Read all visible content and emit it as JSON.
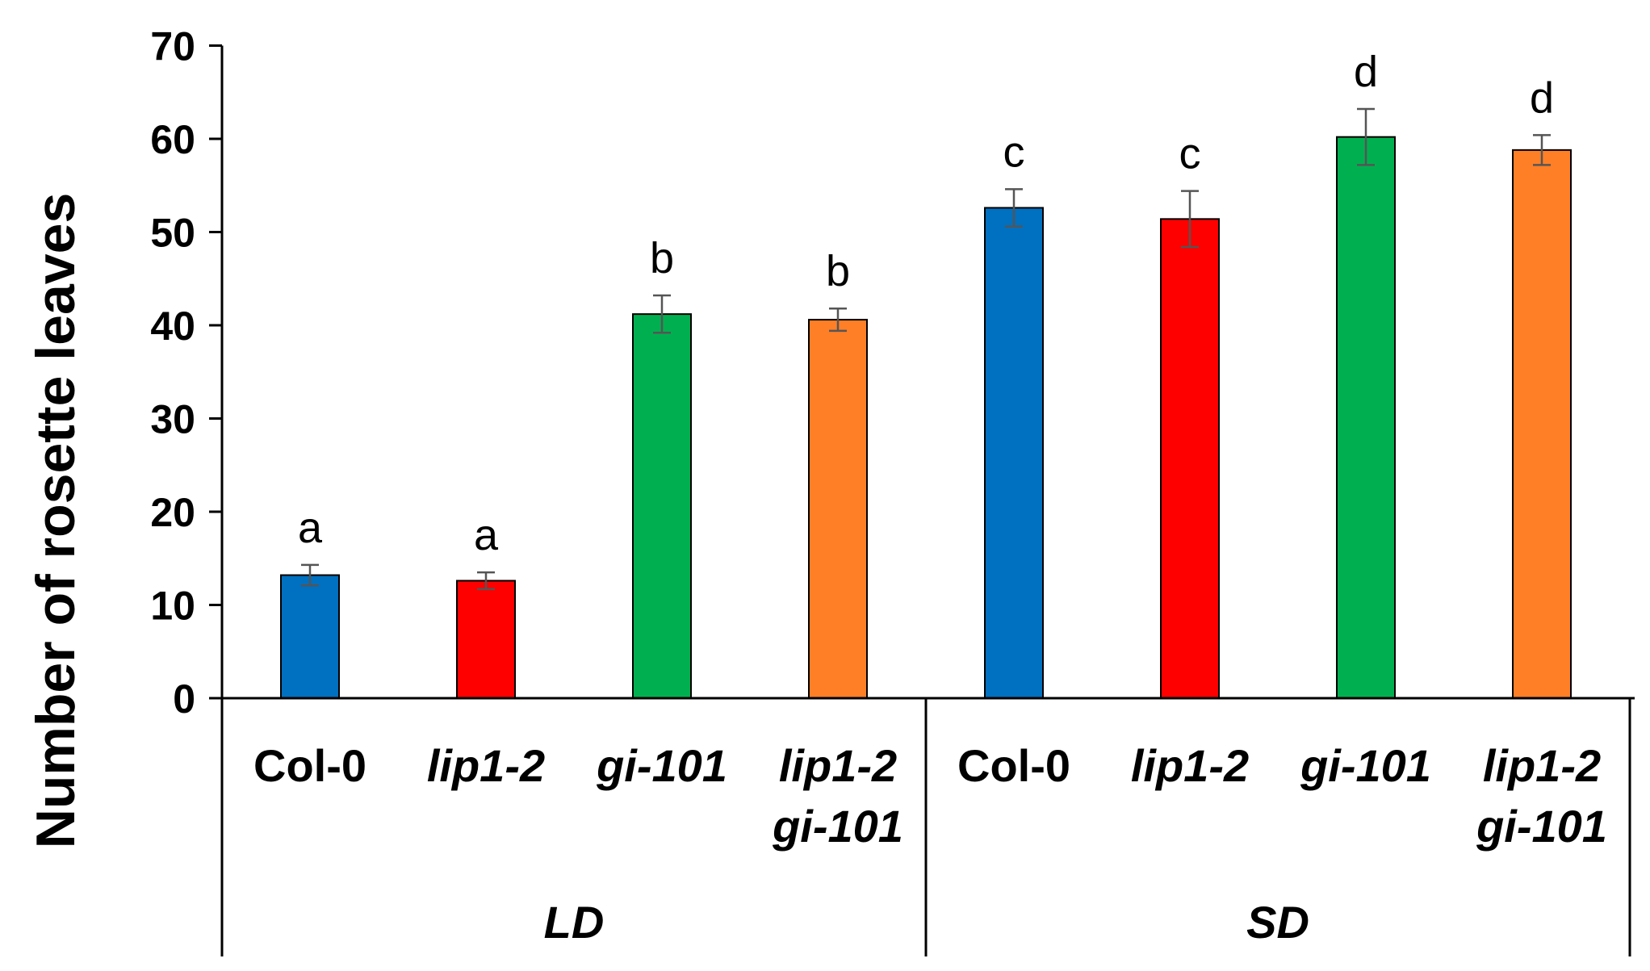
{
  "chart_data": {
    "type": "bar",
    "title": "",
    "xlabel": "",
    "ylabel": "Number of rosette leaves",
    "ylim": [
      0,
      70
    ],
    "yticks": [
      0,
      10,
      20,
      30,
      40,
      50,
      60,
      70
    ],
    "grid": false,
    "legend": "none",
    "groups": [
      {
        "label": "LD",
        "bars": [
          {
            "category": "Col-0",
            "category_lines": [
              "Col-0"
            ],
            "italic": false,
            "value": 13.2,
            "error": 1.1,
            "letter": "a",
            "color": "#0070C0"
          },
          {
            "category": "lip1-2",
            "category_lines": [
              "lip1-2"
            ],
            "italic": true,
            "value": 12.6,
            "error": 0.9,
            "letter": "a",
            "color": "#FF0000"
          },
          {
            "category": "gi-101",
            "category_lines": [
              "gi-101"
            ],
            "italic": true,
            "value": 41.2,
            "error": 2.0,
            "letter": "b",
            "color": "#00B050"
          },
          {
            "category": "lip1-2 gi-101",
            "category_lines": [
              "lip1-2",
              "gi-101"
            ],
            "italic": true,
            "value": 40.6,
            "error": 1.2,
            "letter": "b",
            "color": "#FF7F27"
          }
        ]
      },
      {
        "label": "SD",
        "bars": [
          {
            "category": "Col-0",
            "category_lines": [
              "Col-0"
            ],
            "italic": false,
            "value": 52.6,
            "error": 2.0,
            "letter": "c",
            "color": "#0070C0"
          },
          {
            "category": "lip1-2",
            "category_lines": [
              "lip1-2"
            ],
            "italic": true,
            "value": 51.4,
            "error": 3.0,
            "letter": "c",
            "color": "#FF0000"
          },
          {
            "category": "gi-101",
            "category_lines": [
              "gi-101"
            ],
            "italic": true,
            "value": 60.2,
            "error": 3.0,
            "letter": "d",
            "color": "#00B050"
          },
          {
            "category": "lip1-2 gi-101",
            "category_lines": [
              "lip1-2",
              "gi-101"
            ],
            "italic": true,
            "value": 58.8,
            "error": 1.6,
            "letter": "d",
            "color": "#FF7F27"
          }
        ]
      }
    ]
  }
}
